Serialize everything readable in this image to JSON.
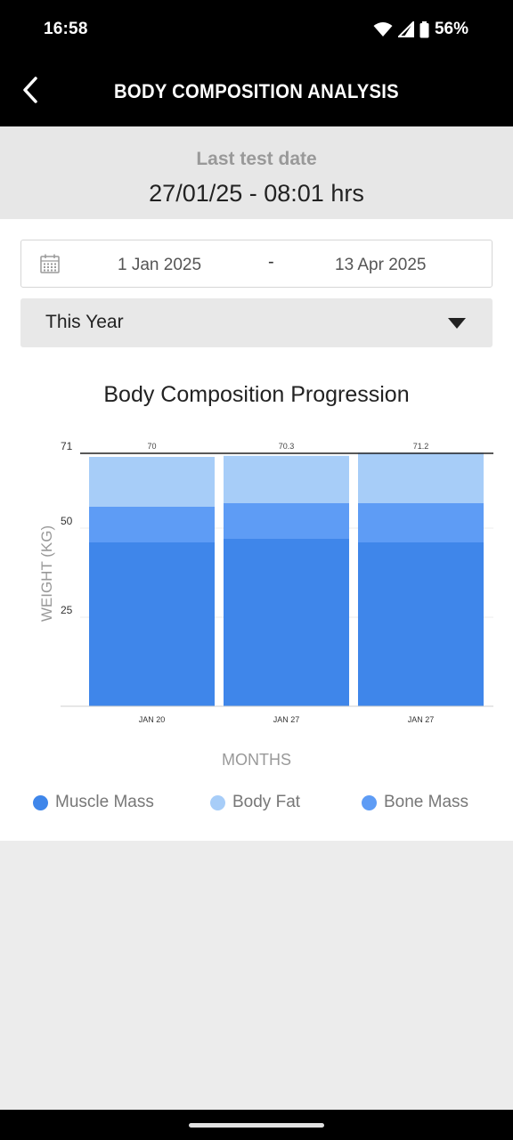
{
  "status_bar": {
    "time": "16:58",
    "battery": "56%",
    "icons": [
      "wifi-icon",
      "cellular-signal-icon",
      "battery-icon"
    ]
  },
  "app_bar": {
    "title": "BODY COMPOSITION ANALYSIS",
    "back_icon": "chevron-left-icon"
  },
  "last_test": {
    "label": "Last test date",
    "value": "27/01/25 - 08:01 hrs"
  },
  "date_range": {
    "start": "1 Jan 2025",
    "separator": "-",
    "end": "13 Apr 2025",
    "icon": "calendar-icon"
  },
  "period": {
    "selected": "This Year"
  },
  "chart": {
    "title": "Body Composition Progression"
  },
  "chart_data": {
    "type": "bar",
    "stacked": true,
    "title": "Body Composition Progression",
    "xlabel": "MONTHS",
    "ylabel": "WEIGHT (KG)",
    "categories": [
      "JAN 20",
      "JAN 27",
      "JAN 27"
    ],
    "totals": [
      "70",
      "70.3",
      "71.2"
    ],
    "ylim": [
      0,
      71
    ],
    "yticks": [
      25,
      50,
      71
    ],
    "reference_line": 71,
    "series": [
      {
        "name": "Muscle Mass",
        "color": "#3f86ea",
        "values": [
          46,
          47,
          46
        ]
      },
      {
        "name": "Bone Mass",
        "color": "#5e9cf5",
        "values": [
          10,
          10,
          11
        ]
      },
      {
        "name": "Body Fat",
        "color": "#a7cdf8",
        "values": [
          14,
          13.3,
          14.2
        ]
      }
    ],
    "legend_position": "bottom"
  },
  "legend": [
    {
      "label": "Muscle Mass",
      "color": "#3f86ea"
    },
    {
      "label": "Body Fat",
      "color": "#a7cdf8"
    },
    {
      "label": "Bone Mass",
      "color": "#5e9cf5"
    }
  ]
}
